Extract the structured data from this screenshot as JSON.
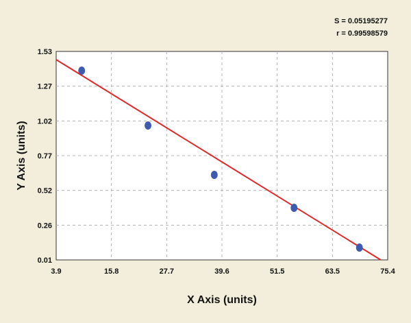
{
  "chart_data": {
    "type": "scatter",
    "title": "",
    "xlabel": "X Axis (units)",
    "ylabel": "Y Axis (units)",
    "xlim": [
      3.9,
      75.4
    ],
    "ylim": [
      0.01,
      1.53
    ],
    "x_ticks": [
      "3.9",
      "15.8",
      "27.7",
      "39.6",
      "51.5",
      "63.5",
      "75.4"
    ],
    "y_ticks": [
      "0.01",
      "0.26",
      "0.52",
      "0.77",
      "1.02",
      "1.27",
      "1.53"
    ],
    "grid": true,
    "series": [
      {
        "type": "scatter",
        "color": "#3f5bb0",
        "x": [
          9.4,
          23.7,
          38.0,
          55.2,
          69.3
        ],
        "y": [
          1.39,
          0.99,
          0.63,
          0.39,
          0.1
        ]
      }
    ],
    "fit_line": {
      "color": "#e32626",
      "x": [
        3.9,
        73.9
      ],
      "y": [
        1.47,
        0.01
      ]
    },
    "stats": {
      "s_text": "S = 0.05195277",
      "r_text": "r = 0.99598579"
    },
    "colors": {
      "background": "#f2eedb",
      "plot_area": "#ffffff",
      "grid": "#b3b3b3"
    }
  }
}
